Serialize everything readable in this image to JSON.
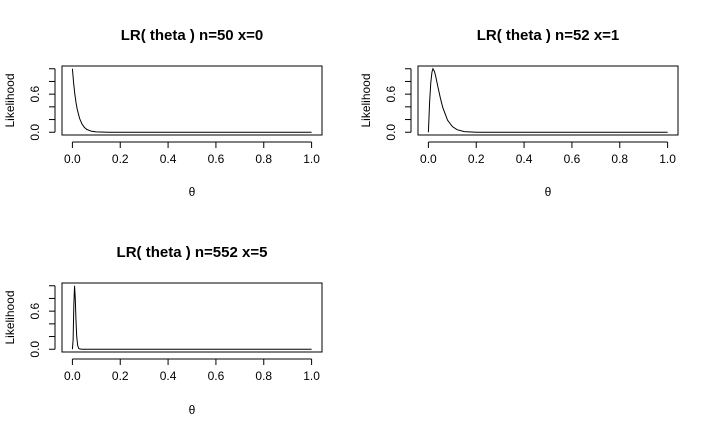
{
  "chart_data": [
    {
      "type": "line",
      "title": "LR( theta ) n=50 x=0",
      "xlabel": "θ",
      "ylabel": "Likelihood",
      "n": 50,
      "x_successes": 0,
      "xlim": [
        0,
        1
      ],
      "ylim": [
        0,
        1
      ],
      "xticks": [
        "0.0",
        "0.2",
        "0.4",
        "0.6",
        "0.8",
        "1.0"
      ],
      "xtick_values": [
        0,
        0.2,
        0.4,
        0.6,
        0.8,
        1.0
      ],
      "yticks": [
        "0.0",
        "0.6"
      ],
      "ytick_values": [
        0,
        0.6
      ],
      "series": [
        {
          "x": [
            0,
            0.005,
            0.01,
            0.015,
            0.02,
            0.03,
            0.04,
            0.05,
            0.06,
            0.08,
            0.1,
            0.15,
            0.2,
            1.0
          ],
          "y": [
            1.0,
            0.778,
            0.605,
            0.469,
            0.364,
            0.218,
            0.13,
            0.077,
            0.045,
            0.015,
            0.005,
            0.0,
            0.0,
            0.0
          ]
        }
      ]
    },
    {
      "type": "line",
      "title": "LR( theta ) n=52 x=1",
      "xlabel": "θ",
      "ylabel": "Likelihood",
      "n": 52,
      "x_successes": 1,
      "xlim": [
        0,
        1
      ],
      "ylim": [
        0,
        1
      ],
      "xticks": [
        "0.0",
        "0.2",
        "0.4",
        "0.6",
        "0.8",
        "1.0"
      ],
      "xtick_values": [
        0,
        0.2,
        0.4,
        0.6,
        0.8,
        1.0
      ],
      "yticks": [
        "0.0",
        "0.6"
      ],
      "ytick_values": [
        0,
        0.6
      ],
      "series": [
        {
          "x": [
            0,
            0.005,
            0.01,
            0.015,
            0.019,
            0.025,
            0.03,
            0.04,
            0.05,
            0.06,
            0.08,
            0.1,
            0.12,
            0.15,
            0.2,
            1.0
          ],
          "y": [
            0.0,
            0.47,
            0.78,
            0.95,
            1.0,
            0.96,
            0.89,
            0.71,
            0.54,
            0.39,
            0.19,
            0.09,
            0.04,
            0.01,
            0.0,
            0.0
          ]
        }
      ]
    },
    {
      "type": "line",
      "title": "LR( theta ) n=552 x=5",
      "xlabel": "θ",
      "ylabel": "Likelihood",
      "n": 552,
      "x_successes": 5,
      "xlim": [
        0,
        1
      ],
      "ylim": [
        0,
        1
      ],
      "xticks": [
        "0.0",
        "0.2",
        "0.4",
        "0.6",
        "0.8",
        "1.0"
      ],
      "xtick_values": [
        0,
        0.2,
        0.4,
        0.6,
        0.8,
        1.0
      ],
      "yticks": [
        "0.0",
        "0.6"
      ],
      "ytick_values": [
        0,
        0.6
      ],
      "series": [
        {
          "x": [
            0,
            0.003,
            0.006,
            0.009,
            0.012,
            0.015,
            0.018,
            0.022,
            0.026,
            0.03,
            0.04,
            0.05,
            1.0
          ],
          "y": [
            0.0,
            0.15,
            0.7,
            1.0,
            0.8,
            0.45,
            0.2,
            0.06,
            0.015,
            0.005,
            0.0,
            0.0,
            0.0
          ]
        }
      ]
    }
  ]
}
